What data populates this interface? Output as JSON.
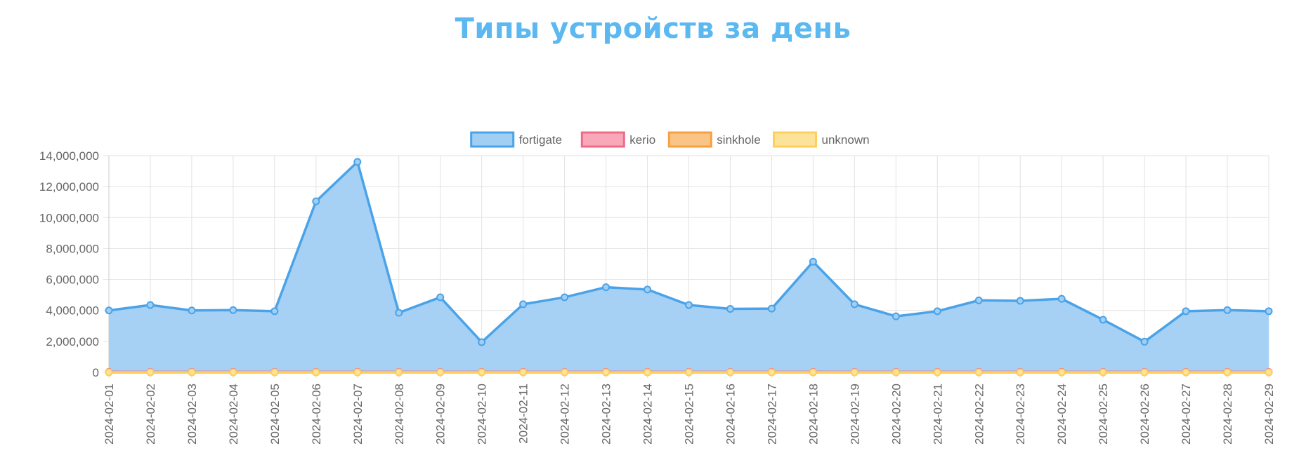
{
  "chart_data": {
    "type": "area",
    "title": "Типы устройств за день",
    "title_color": "#5bb8f0",
    "xlabel": "",
    "ylabel": "",
    "ylim": [
      0,
      14000000
    ],
    "yticks": [
      "0",
      "2,000,000",
      "4,000,000",
      "6,000,000",
      "8,000,000",
      "10,000,000",
      "12,000,000",
      "14,000,000"
    ],
    "grid": true,
    "legend_position": "top",
    "x": [
      "2024-02-01",
      "2024-02-02",
      "2024-02-03",
      "2024-02-04",
      "2024-02-05",
      "2024-02-06",
      "2024-02-07",
      "2024-02-08",
      "2024-02-09",
      "2024-02-10",
      "2024-02-11",
      "2024-02-12",
      "2024-02-13",
      "2024-02-14",
      "2024-02-15",
      "2024-02-16",
      "2024-02-17",
      "2024-02-18",
      "2024-02-19",
      "2024-02-20",
      "2024-02-21",
      "2024-02-22",
      "2024-02-23",
      "2024-02-24",
      "2024-02-25",
      "2024-02-26",
      "2024-02-27",
      "2024-02-28",
      "2024-02-29"
    ],
    "series": [
      {
        "name": "fortigate",
        "color": "#4aa3e8",
        "fill": "#a1cff4",
        "values": [
          4000000,
          4350000,
          4000000,
          4020000,
          3950000,
          11050000,
          13600000,
          3850000,
          4850000,
          1950000,
          4400000,
          4850000,
          5500000,
          5350000,
          4350000,
          4100000,
          4120000,
          7150000,
          4400000,
          3620000,
          3950000,
          4650000,
          4620000,
          4750000,
          3400000,
          1980000,
          3950000,
          4020000,
          3950000
        ]
      },
      {
        "name": "kerio",
        "color": "#f06b88",
        "fill": "#f8a8b8",
        "values": [
          30000,
          30000,
          30000,
          30000,
          30000,
          30000,
          30000,
          30000,
          30000,
          30000,
          30000,
          30000,
          30000,
          30000,
          30000,
          30000,
          30000,
          30000,
          30000,
          30000,
          30000,
          30000,
          30000,
          30000,
          30000,
          30000,
          30000,
          30000,
          30000
        ]
      },
      {
        "name": "sinkhole",
        "color": "#f7a040",
        "fill": "#fbc487",
        "values": [
          0,
          0,
          0,
          0,
          0,
          0,
          0,
          0,
          0,
          0,
          0,
          0,
          0,
          0,
          0,
          0,
          0,
          0,
          0,
          0,
          0,
          0,
          0,
          0,
          0,
          0,
          0,
          0,
          0
        ]
      },
      {
        "name": "unknown",
        "color": "#fcd05a",
        "fill": "#fde29a",
        "values": [
          0,
          0,
          0,
          0,
          0,
          0,
          0,
          0,
          0,
          0,
          0,
          0,
          0,
          0,
          0,
          0,
          0,
          0,
          0,
          0,
          0,
          0,
          0,
          0,
          0,
          0,
          0,
          0,
          0
        ]
      }
    ]
  }
}
